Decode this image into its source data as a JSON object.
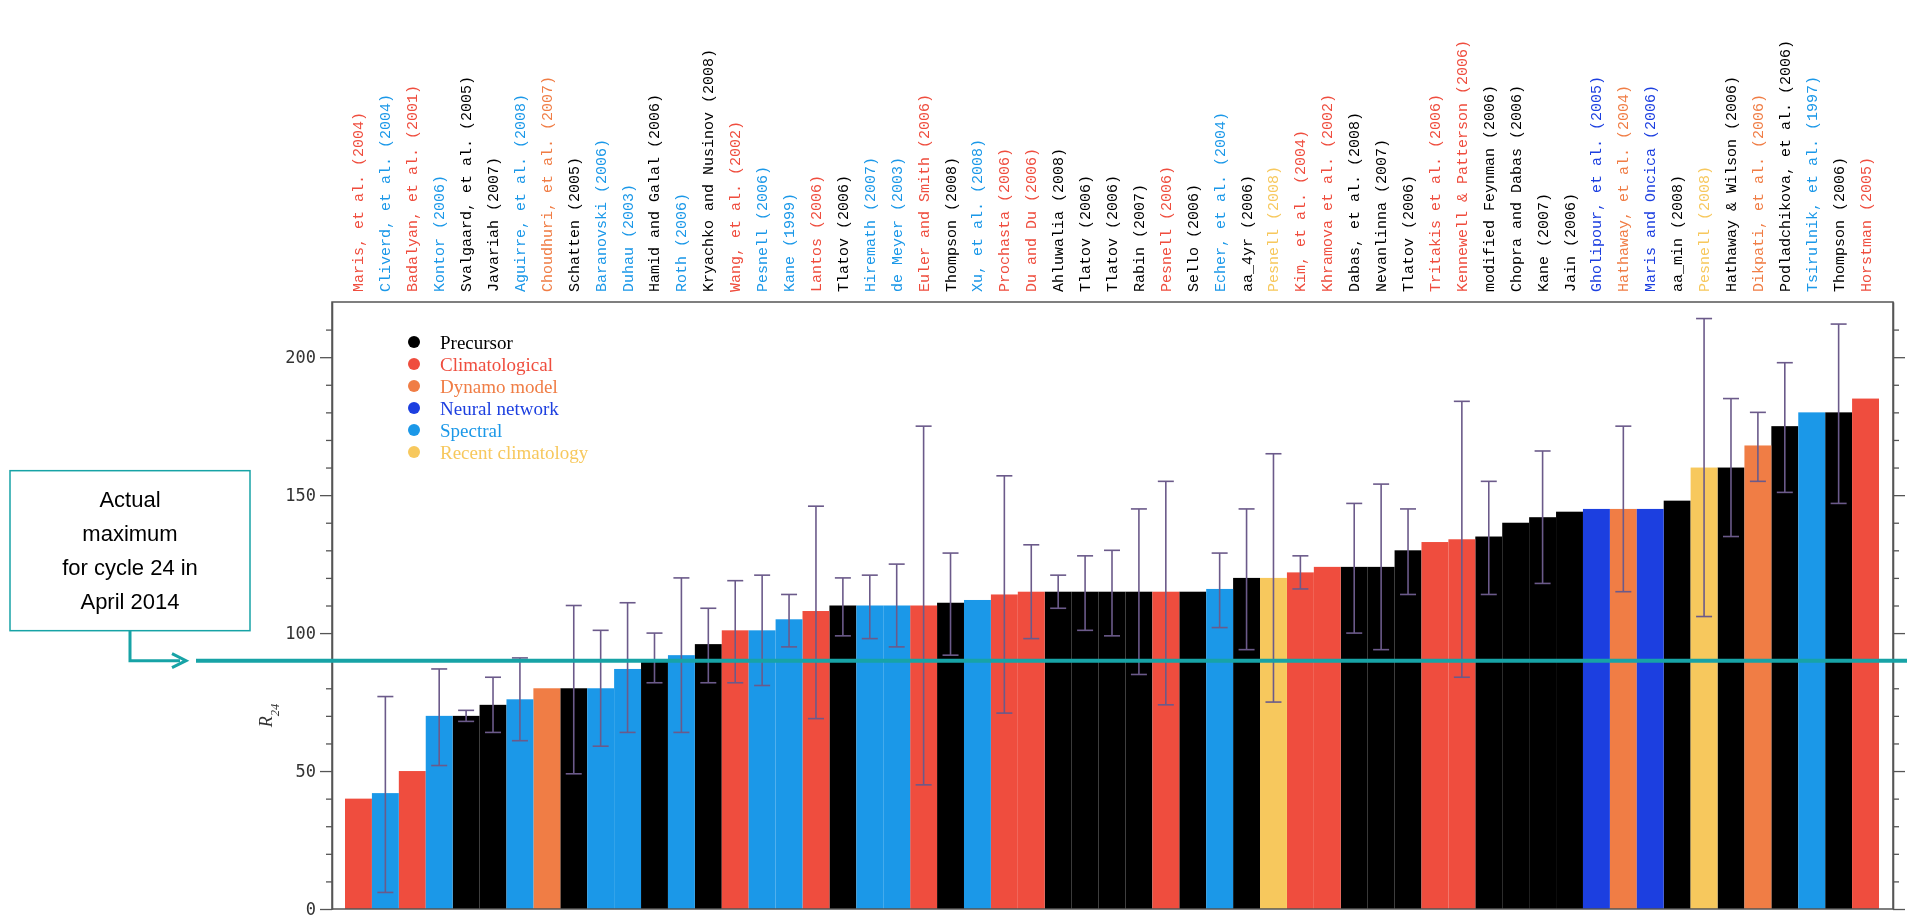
{
  "chart_data": {
    "type": "bar",
    "ylabel": "R$_{24}$",
    "categories": [
      "Maris, et al. (2004)",
      "Cliverd, et al. (2004)",
      "Badalyan, et al. (2001)",
      "Kontor (2006)",
      "Svalgaard, et al. (2005)",
      "Javariah (2007)",
      "Aguirre, et al. (2008)",
      "Choudhuri, et al. (2007)",
      "Schatten (2005)",
      "Baranovski (2006)",
      "Duhau (2003)",
      "Hamid and Galal (2006)",
      "Roth (2006)",
      "Kryachko and Nusinov (2008)",
      "Wang, et al. (2002)",
      "Pesnell (2006)",
      "Kane (1999)",
      "Lantos (2006)",
      "Tlatov (2006)",
      "Hiremath (2007)",
      "de Meyer (2003)",
      "Euler and Smith (2006)",
      "Thompson (2008)",
      "Xu, et al. (2008)",
      "Prochasta (2006)",
      "Du and Du (2006)",
      "Ahluwalia (2008)",
      "Tlatov (2006)",
      "Tlatov (2006)",
      "Rabin (2007)",
      "Pesnell (2006)",
      "Sello (2006)",
      "Echer, et al. (2004)",
      "aa_4yr (2006)",
      "Pesnell (2008)",
      "Kim, et al. (2004)",
      "Khramova et al. (2002)",
      "Dabas, et al. (2008)",
      "Nevanlinna (2007)",
      "Tlatov (2006)",
      "Tritakis et al. (2006)",
      "Kennewell & Patterson (2006)",
      "modified Feynman (2006)",
      "Chopra and Dabas (2006)",
      "Kane (2007)",
      "Jain (2006)",
      "Gholipour, et al. (2005)",
      "Hathaway, et al. (2004)",
      "Maris and Oncica (2006)",
      "aa_min (2008)",
      "Pesnell (2008)",
      "Hathaway & Wilson (2006)",
      "Dikpati, et al. (2006)",
      "Podladchikova, et al. (2006)",
      "Tsirulnik, et al. (1997)",
      "Thompson (2006)",
      "Horstman (2005)"
    ],
    "series": [
      {
        "name": "Precursor",
        "color": "#000000",
        "values": [
          null,
          null,
          null,
          null,
          70,
          74,
          null,
          null,
          80,
          null,
          null,
          90,
          null,
          96,
          null,
          null,
          null,
          null,
          110,
          null,
          null,
          null,
          111,
          null,
          null,
          null,
          115,
          115,
          115,
          115,
          null,
          115,
          null,
          120,
          null,
          null,
          null,
          124,
          124,
          130,
          null,
          null,
          135,
          140,
          142,
          144,
          null,
          null,
          null,
          148,
          null,
          160,
          null,
          175,
          null,
          180,
          null
        ],
        "errors": [
          null,
          null,
          null,
          null,
          [
            68,
            72
          ],
          [
            64,
            84
          ],
          null,
          null,
          [
            49,
            110
          ],
          null,
          null,
          [
            82,
            100
          ],
          null,
          [
            82,
            109
          ],
          null,
          null,
          null,
          null,
          [
            99,
            120
          ],
          null,
          null,
          null,
          [
            92,
            129
          ],
          null,
          null,
          null,
          [
            109,
            121
          ],
          [
            101,
            128
          ],
          [
            99,
            130
          ],
          [
            85,
            145
          ],
          null,
          null,
          null,
          [
            94,
            145
          ],
          null,
          null,
          null,
          [
            100,
            147
          ],
          [
            94,
            154
          ],
          [
            114,
            145
          ],
          null,
          null,
          [
            114,
            155
          ],
          null,
          [
            118,
            166
          ],
          null,
          null,
          null,
          null,
          null,
          null,
          [
            135,
            185
          ],
          null,
          [
            151,
            198
          ],
          null,
          [
            147,
            212
          ],
          null
        ]
      },
      {
        "name": "Climatological",
        "color": "#ef4d3e",
        "values": [
          40,
          null,
          50,
          null,
          null,
          null,
          null,
          null,
          null,
          null,
          null,
          null,
          null,
          null,
          101,
          null,
          null,
          108,
          null,
          null,
          null,
          110,
          null,
          null,
          114,
          115,
          null,
          null,
          null,
          null,
          115,
          null,
          null,
          null,
          null,
          122,
          124,
          null,
          null,
          null,
          133,
          134,
          null,
          null,
          null,
          null,
          null,
          null,
          null,
          null,
          null,
          null,
          null,
          null,
          null,
          null,
          185
        ],
        "errors": [
          null,
          null,
          null,
          null,
          null,
          null,
          null,
          null,
          null,
          null,
          null,
          null,
          null,
          null,
          [
            82,
            119
          ],
          null,
          null,
          [
            69,
            146
          ],
          null,
          null,
          null,
          [
            45,
            175
          ],
          null,
          null,
          [
            71,
            157
          ],
          [
            98,
            132
          ],
          null,
          null,
          null,
          null,
          [
            74,
            155
          ],
          null,
          null,
          null,
          null,
          [
            116,
            128
          ],
          null,
          null,
          null,
          null,
          null,
          [
            84,
            184
          ],
          null,
          null,
          null,
          null,
          null,
          null,
          null,
          null,
          null,
          null,
          null,
          null,
          null,
          null,
          null
        ]
      },
      {
        "name": "Dynamo model",
        "color": "#f07d45",
        "values": [
          null,
          null,
          null,
          null,
          null,
          null,
          null,
          80,
          null,
          null,
          null,
          null,
          null,
          null,
          null,
          null,
          null,
          null,
          null,
          null,
          null,
          null,
          null,
          null,
          null,
          null,
          null,
          null,
          null,
          null,
          null,
          null,
          null,
          null,
          null,
          null,
          null,
          null,
          null,
          null,
          null,
          null,
          null,
          null,
          null,
          null,
          null,
          145,
          null,
          null,
          null,
          null,
          168,
          null,
          null,
          null,
          null
        ],
        "errors": [
          null,
          null,
          null,
          null,
          null,
          null,
          null,
          null,
          null,
          null,
          null,
          null,
          null,
          null,
          null,
          null,
          null,
          null,
          null,
          null,
          null,
          null,
          null,
          null,
          null,
          null,
          null,
          null,
          null,
          null,
          null,
          null,
          null,
          null,
          null,
          null,
          null,
          null,
          null,
          null,
          null,
          null,
          null,
          null,
          null,
          null,
          null,
          [
            115,
            175
          ],
          null,
          null,
          null,
          null,
          [
            155,
            180
          ],
          null,
          null,
          null,
          null
        ]
      },
      {
        "name": "Neural network",
        "color": "#1c3fe0",
        "values": [
          null,
          null,
          null,
          null,
          null,
          null,
          null,
          null,
          null,
          null,
          null,
          null,
          null,
          null,
          null,
          null,
          null,
          null,
          null,
          null,
          null,
          null,
          null,
          null,
          null,
          null,
          null,
          null,
          null,
          null,
          null,
          null,
          null,
          null,
          null,
          null,
          null,
          null,
          null,
          null,
          null,
          null,
          null,
          null,
          null,
          null,
          145,
          null,
          145,
          null,
          null,
          null,
          null,
          null,
          null,
          null,
          null
        ]
      },
      {
        "name": "Spectral",
        "color": "#1b98e8",
        "values": [
          null,
          42,
          null,
          70,
          null,
          null,
          76,
          null,
          null,
          80,
          87,
          null,
          92,
          null,
          null,
          101,
          105,
          null,
          null,
          110,
          110,
          null,
          null,
          112,
          null,
          null,
          null,
          null,
          null,
          null,
          null,
          null,
          116,
          null,
          null,
          null,
          null,
          null,
          null,
          null,
          null,
          null,
          null,
          null,
          null,
          null,
          null,
          null,
          null,
          null,
          null,
          null,
          null,
          null,
          180,
          null,
          null
        ],
        "errors": [
          null,
          [
            6,
            77
          ],
          null,
          [
            52,
            87
          ],
          null,
          null,
          [
            61,
            91
          ],
          null,
          null,
          [
            59,
            101
          ],
          [
            64,
            111
          ],
          null,
          [
            64,
            120
          ],
          null,
          null,
          [
            81,
            121
          ],
          [
            95,
            114
          ],
          null,
          null,
          [
            98,
            121
          ],
          [
            95,
            125
          ],
          null,
          null,
          null,
          null,
          null,
          null,
          null,
          null,
          null,
          null,
          null,
          [
            102,
            129
          ],
          null,
          null,
          null,
          null,
          null,
          null,
          null,
          null,
          null,
          null,
          null,
          null,
          null,
          null,
          null,
          null,
          null,
          null,
          null,
          null,
          null,
          null,
          null,
          null
        ]
      },
      {
        "name": "Recent climatology",
        "color": "#f7c85d",
        "values": [
          null,
          null,
          null,
          null,
          null,
          null,
          null,
          null,
          null,
          null,
          null,
          null,
          null,
          null,
          null,
          null,
          null,
          null,
          null,
          null,
          null,
          null,
          null,
          null,
          null,
          null,
          null,
          null,
          null,
          null,
          null,
          null,
          null,
          null,
          120,
          null,
          null,
          null,
          null,
          null,
          null,
          null,
          null,
          null,
          null,
          null,
          null,
          null,
          null,
          null,
          160,
          null,
          null,
          null,
          null,
          null,
          null
        ],
        "errors": [
          null,
          null,
          null,
          null,
          null,
          null,
          null,
          null,
          null,
          null,
          null,
          null,
          null,
          null,
          null,
          null,
          null,
          null,
          null,
          null,
          null,
          null,
          null,
          null,
          null,
          null,
          null,
          null,
          null,
          null,
          null,
          null,
          null,
          null,
          [
            75,
            165
          ],
          null,
          null,
          null,
          null,
          null,
          null,
          null,
          null,
          null,
          null,
          null,
          null,
          null,
          null,
          null,
          [
            106,
            214
          ],
          null,
          null,
          null,
          null,
          null,
          null
        ]
      }
    ],
    "ylim": [
      0,
      220
    ],
    "yticks": [
      0,
      {
        "value": 10,
        "label": null
      },
      {
        "value": 20,
        "label": null
      },
      {
        "value": 30,
        "label": null
      },
      {
        "value": 40,
        "label": null
      },
      50,
      {
        "value": 60,
        "label": null
      },
      {
        "value": 70,
        "label": null
      },
      {
        "value": 80,
        "label": null
      },
      {
        "value": 90,
        "label": null
      },
      100,
      {
        "value": 110,
        "label": null
      },
      {
        "value": 120,
        "label": null
      },
      {
        "value": 130,
        "label": null
      },
      {
        "value": 140,
        "label": null
      },
      150,
      {
        "value": 160,
        "label": null
      },
      {
        "value": 170,
        "label": null
      },
      {
        "value": 180,
        "label": null
      },
      {
        "value": 190,
        "label": null
      },
      200,
      {
        "value": 210,
        "label": null
      }
    ],
    "legend": "top left",
    "ref_lines": [
      {
        "axis": "y",
        "value": 90,
        "label": "Actual\nmaximum\nfor cycle 24 in\nApril 2014",
        "color": "#17a3a6"
      }
    ]
  }
}
